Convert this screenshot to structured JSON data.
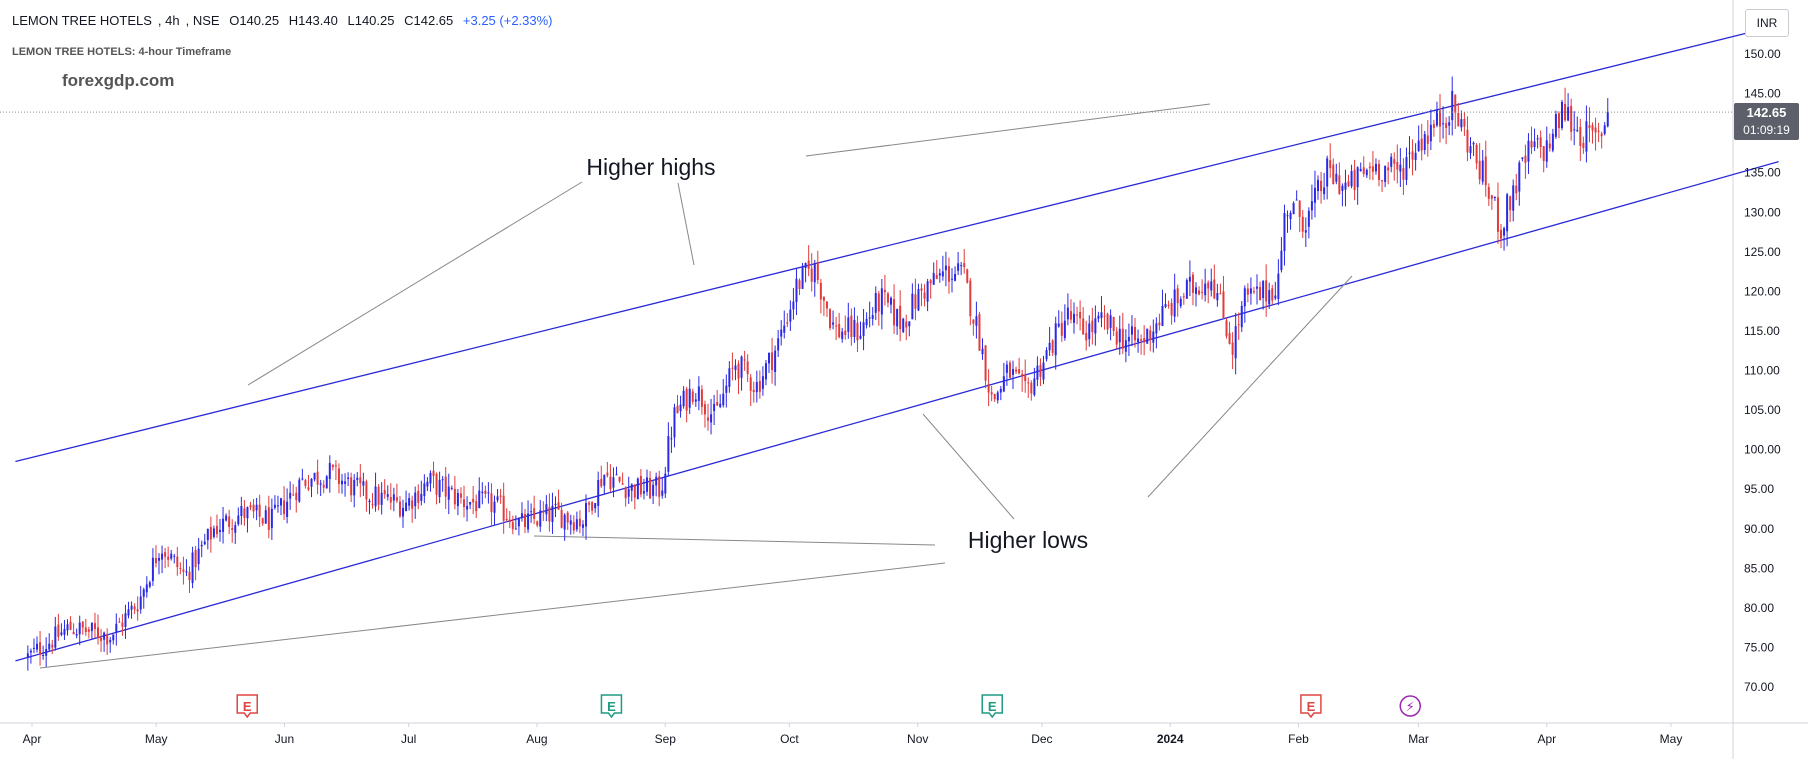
{
  "header": {
    "symbol": "LEMON TREE HOTELS",
    "interval": "4h",
    "exchange": "NSE",
    "open": "O140.25",
    "high": "H143.40",
    "low": "L140.25",
    "close": "C142.65",
    "change": "+3.25 (+2.33%)",
    "subtitle": "LEMON TREE HOTELS: 4-hour Timeframe",
    "watermark": "forexgdp.com"
  },
  "currency_button": "INR",
  "price_badge": {
    "price": "142.65",
    "countdown": "01:09:19"
  },
  "colors": {
    "up": "#2929e6",
    "down": "#e23b3b",
    "channel": "#2a2ad8",
    "annotation": "#888888",
    "earnings": "#e04545",
    "dividend": "#1d9c82",
    "split": "#9c27b0"
  },
  "annotations": {
    "higher_highs": "Higher highs",
    "higher_lows": "Higher lows"
  },
  "chart_data": {
    "type": "candlestick",
    "title": "LEMON TREE HOTELS, 4h, NSE",
    "xlabel": "",
    "ylabel": "",
    "ylim": [
      67,
      154
    ],
    "x_ticks": [
      "Apr",
      "May",
      "Jun",
      "Jul",
      "Aug",
      "Sep",
      "Oct",
      "Nov",
      "Dec",
      "2024",
      "Feb",
      "Mar",
      "Apr",
      "May"
    ],
    "y_ticks": [
      "70.00",
      "75.00",
      "80.00",
      "85.00",
      "90.00",
      "95.00",
      "100.00",
      "105.00",
      "110.00",
      "115.00",
      "120.00",
      "125.00",
      "130.00",
      "135.00",
      "140.00",
      "145.00",
      "150.00"
    ],
    "last_price": 142.65,
    "series": [
      {
        "values": [
          {
            "date": "2023-03-31",
            "close": 73.8
          },
          {
            "date": "2023-04-10",
            "close": 77.5
          },
          {
            "date": "2023-04-20",
            "close": 76.5
          },
          {
            "date": "2023-04-27",
            "close": 81
          },
          {
            "date": "2023-05-02",
            "close": 88
          },
          {
            "date": "2023-05-08",
            "close": 84
          },
          {
            "date": "2023-05-15",
            "close": 90
          },
          {
            "date": "2023-05-22",
            "close": 92
          },
          {
            "date": "2023-05-29",
            "close": 91
          },
          {
            "date": "2023-06-05",
            "close": 96
          },
          {
            "date": "2023-06-12",
            "close": 97
          },
          {
            "date": "2023-06-20",
            "close": 94.5
          },
          {
            "date": "2023-06-30",
            "close": 93
          },
          {
            "date": "2023-07-06",
            "close": 96
          },
          {
            "date": "2023-07-14",
            "close": 93.5
          },
          {
            "date": "2023-07-22",
            "close": 93
          },
          {
            "date": "2023-07-28",
            "close": 90.5
          },
          {
            "date": "2023-08-05",
            "close": 92
          },
          {
            "date": "2023-08-12",
            "close": 91
          },
          {
            "date": "2023-08-17",
            "close": 97
          },
          {
            "date": "2023-08-24",
            "close": 95
          },
          {
            "date": "2023-08-31",
            "close": 95
          },
          {
            "date": "2023-09-03",
            "close": 104
          },
          {
            "date": "2023-09-08",
            "close": 108
          },
          {
            "date": "2023-09-13",
            "close": 104
          },
          {
            "date": "2023-09-18",
            "close": 111
          },
          {
            "date": "2023-09-23",
            "close": 108
          },
          {
            "date": "2023-09-28",
            "close": 113
          },
          {
            "date": "2023-10-03",
            "close": 121
          },
          {
            "date": "2023-10-07",
            "close": 123
          },
          {
            "date": "2023-10-12",
            "close": 115
          },
          {
            "date": "2023-10-18",
            "close": 115
          },
          {
            "date": "2023-10-23",
            "close": 119
          },
          {
            "date": "2023-10-28",
            "close": 116
          },
          {
            "date": "2023-11-02",
            "close": 120
          },
          {
            "date": "2023-11-08",
            "close": 122.5
          },
          {
            "date": "2023-11-12",
            "close": 122
          },
          {
            "date": "2023-11-16",
            "close": 114
          },
          {
            "date": "2023-11-19",
            "close": 106
          },
          {
            "date": "2023-11-23",
            "close": 110
          },
          {
            "date": "2023-11-27",
            "close": 107
          },
          {
            "date": "2023-12-02",
            "close": 112
          },
          {
            "date": "2023-12-07",
            "close": 117
          },
          {
            "date": "2023-12-11",
            "close": 115
          },
          {
            "date": "2023-12-16",
            "close": 116
          },
          {
            "date": "2023-12-21",
            "close": 114
          },
          {
            "date": "2023-12-25",
            "close": 113.5
          },
          {
            "date": "2023-12-30",
            "close": 117
          },
          {
            "date": "2024-01-05",
            "close": 120
          },
          {
            "date": "2024-01-11",
            "close": 122
          },
          {
            "date": "2024-01-16",
            "close": 113
          },
          {
            "date": "2024-01-19",
            "close": 119
          },
          {
            "date": "2024-01-23",
            "close": 119.5
          },
          {
            "date": "2024-01-27",
            "close": 121
          },
          {
            "date": "2024-01-29",
            "close": 131
          },
          {
            "date": "2024-02-03",
            "close": 129
          },
          {
            "date": "2024-02-08",
            "close": 135
          },
          {
            "date": "2024-02-13",
            "close": 133
          },
          {
            "date": "2024-02-19",
            "close": 136
          },
          {
            "date": "2024-02-25",
            "close": 135
          },
          {
            "date": "2024-03-01",
            "close": 139
          },
          {
            "date": "2024-03-05",
            "close": 141
          },
          {
            "date": "2024-03-09",
            "close": 143.5
          },
          {
            "date": "2024-03-13",
            "close": 139
          },
          {
            "date": "2024-03-17",
            "close": 134
          },
          {
            "date": "2024-03-21",
            "close": 128
          },
          {
            "date": "2024-03-24",
            "close": 133
          },
          {
            "date": "2024-03-28",
            "close": 138
          },
          {
            "date": "2024-04-01",
            "close": 138
          },
          {
            "date": "2024-04-05",
            "close": 143
          },
          {
            "date": "2024-04-09",
            "close": 140
          },
          {
            "date": "2024-04-13",
            "close": 139
          },
          {
            "date": "2024-04-16",
            "close": 142.65
          }
        ]
      }
    ],
    "channel_lines": [
      {
        "name": "upper",
        "points": [
          {
            "date": "2023-03-28",
            "y": 98.5
          },
          {
            "date": "2024-05-26",
            "y": 153.5
          }
        ]
      },
      {
        "name": "lower",
        "points": [
          {
            "date": "2023-03-28",
            "y": 73.3
          },
          {
            "date": "2024-05-27",
            "y": 136.4
          }
        ]
      }
    ],
    "events": [
      {
        "type": "earnings",
        "label": "E",
        "date": "2023-05-23"
      },
      {
        "type": "dividend",
        "label": "E",
        "date": "2023-08-19"
      },
      {
        "type": "dividend",
        "label": "E",
        "date": "2023-11-19"
      },
      {
        "type": "earnings",
        "label": "E",
        "date": "2024-02-04"
      },
      {
        "type": "split",
        "label": "⚡",
        "date": "2024-02-28"
      }
    ]
  }
}
